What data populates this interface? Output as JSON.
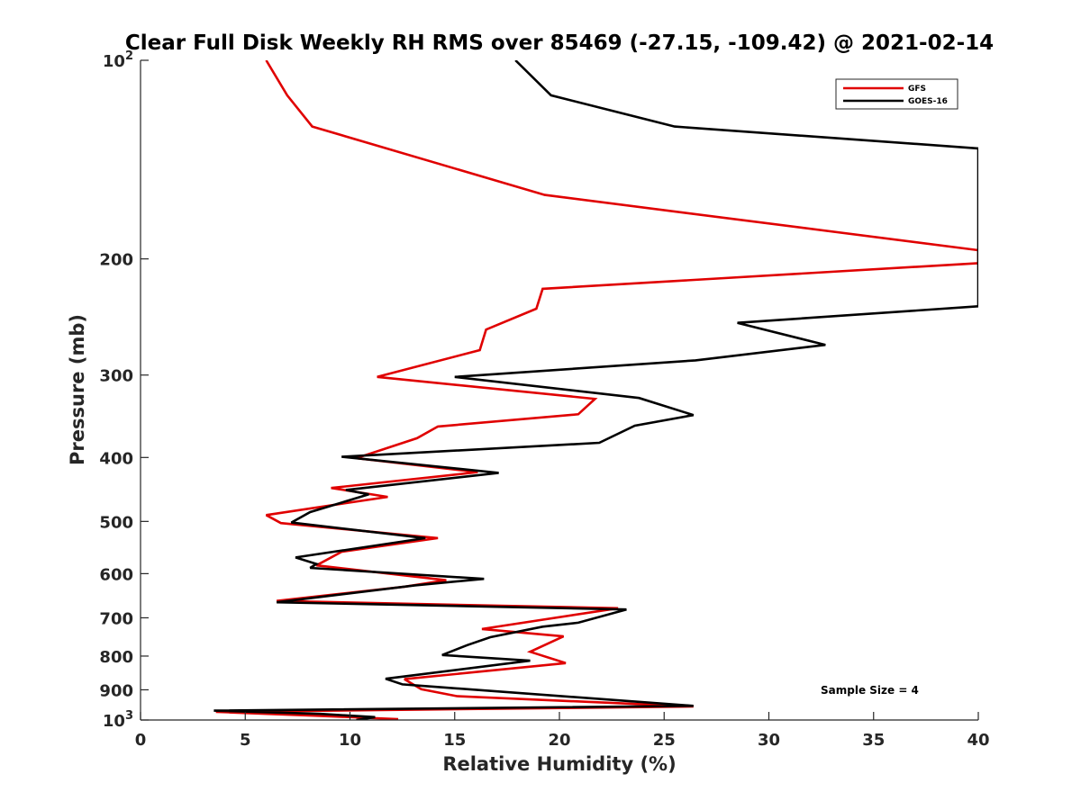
{
  "chart_data": {
    "type": "line",
    "title": "Clear Full Disk Weekly RH RMS over 85469 (-27.15, -109.42) @ 2021-02-14",
    "xlabel": "Relative Humidity (%)",
    "ylabel": "Pressure (mb)",
    "xlim": [
      0,
      40
    ],
    "ylim": [
      100,
      1000
    ],
    "y_scale": "log",
    "y_reversed": true,
    "grid": false,
    "legend_position": "top-right",
    "annotation": "Sample Size = 4",
    "x_ticks": [
      {
        "value": 0,
        "label": "0"
      },
      {
        "value": 5,
        "label": "5"
      },
      {
        "value": 10,
        "label": "10"
      },
      {
        "value": 15,
        "label": "15"
      },
      {
        "value": 20,
        "label": "20"
      },
      {
        "value": 25,
        "label": "25"
      },
      {
        "value": 30,
        "label": "30"
      },
      {
        "value": 35,
        "label": "35"
      },
      {
        "value": 40,
        "label": "40"
      }
    ],
    "y_ticks": [
      {
        "value": 100,
        "label": "10",
        "sup": "2"
      },
      {
        "value": 200,
        "label": "200",
        "sup": ""
      },
      {
        "value": 300,
        "label": "300",
        "sup": ""
      },
      {
        "value": 400,
        "label": "400",
        "sup": ""
      },
      {
        "value": 500,
        "label": "500",
        "sup": ""
      },
      {
        "value": 600,
        "label": "600",
        "sup": ""
      },
      {
        "value": 700,
        "label": "700",
        "sup": ""
      },
      {
        "value": 800,
        "label": "800",
        "sup": ""
      },
      {
        "value": 900,
        "label": "900",
        "sup": ""
      },
      {
        "value": 1000,
        "label": "10",
        "sup": "3"
      }
    ],
    "series": [
      {
        "name": "GFS",
        "color": "#e00000",
        "points": [
          [
            6.0,
            100
          ],
          [
            7.0,
            113
          ],
          [
            8.2,
            126
          ],
          [
            19.3,
            160
          ],
          [
            40.0,
            194
          ],
          [
            40.0,
            203
          ],
          [
            19.2,
            222
          ],
          [
            18.9,
            238
          ],
          [
            16.5,
            256
          ],
          [
            16.2,
            275
          ],
          [
            11.3,
            302
          ],
          [
            21.7,
            326
          ],
          [
            20.9,
            344
          ],
          [
            14.2,
            359
          ],
          [
            13.2,
            374
          ],
          [
            10.3,
            401
          ],
          [
            16.1,
            421
          ],
          [
            9.1,
            445
          ],
          [
            11.8,
            459
          ],
          [
            6.0,
            489
          ],
          [
            6.7,
            503
          ],
          [
            14.2,
            530
          ],
          [
            9.6,
            556
          ],
          [
            8.4,
            583
          ],
          [
            14.6,
            614
          ],
          [
            12.6,
            628
          ],
          [
            6.5,
            660
          ],
          [
            22.8,
            677
          ],
          [
            16.3,
            728
          ],
          [
            20.2,
            747
          ],
          [
            18.6,
            788
          ],
          [
            20.3,
            820
          ],
          [
            12.6,
            867
          ],
          [
            13.4,
            898
          ],
          [
            15.1,
            920
          ],
          [
            26.4,
            954
          ],
          [
            3.6,
            972
          ],
          [
            8.3,
            985
          ],
          [
            12.3,
            997
          ],
          [
            11.7,
            1000
          ]
        ]
      },
      {
        "name": "GOES-16",
        "color": "#000000",
        "points": [
          [
            17.9,
            100
          ],
          [
            19.6,
            113
          ],
          [
            25.5,
            126
          ],
          [
            40.0,
            136
          ],
          [
            40.0,
            236
          ],
          [
            28.5,
            250
          ],
          [
            32.7,
            270
          ],
          [
            26.5,
            285
          ],
          [
            15.0,
            302
          ],
          [
            23.8,
            325
          ],
          [
            26.4,
            345
          ],
          [
            23.6,
            358
          ],
          [
            21.9,
            380
          ],
          [
            9.6,
            399
          ],
          [
            17.1,
            422
          ],
          [
            9.8,
            448
          ],
          [
            10.9,
            455
          ],
          [
            8.1,
            484
          ],
          [
            7.2,
            502
          ],
          [
            13.6,
            530
          ],
          [
            7.4,
            567
          ],
          [
            8.4,
            580
          ],
          [
            8.1,
            588
          ],
          [
            16.4,
            611
          ],
          [
            13.1,
            625
          ],
          [
            6.5,
            663
          ],
          [
            23.2,
            680
          ],
          [
            20.9,
            712
          ],
          [
            19.2,
            722
          ],
          [
            16.7,
            749
          ],
          [
            15.6,
            770
          ],
          [
            14.4,
            797
          ],
          [
            18.6,
            813
          ],
          [
            11.7,
            866
          ],
          [
            12.5,
            883
          ],
          [
            26.4,
            952
          ],
          [
            3.5,
            968
          ],
          [
            8.6,
            979
          ],
          [
            11.2,
            990
          ],
          [
            10.3,
            1000
          ]
        ]
      }
    ]
  }
}
